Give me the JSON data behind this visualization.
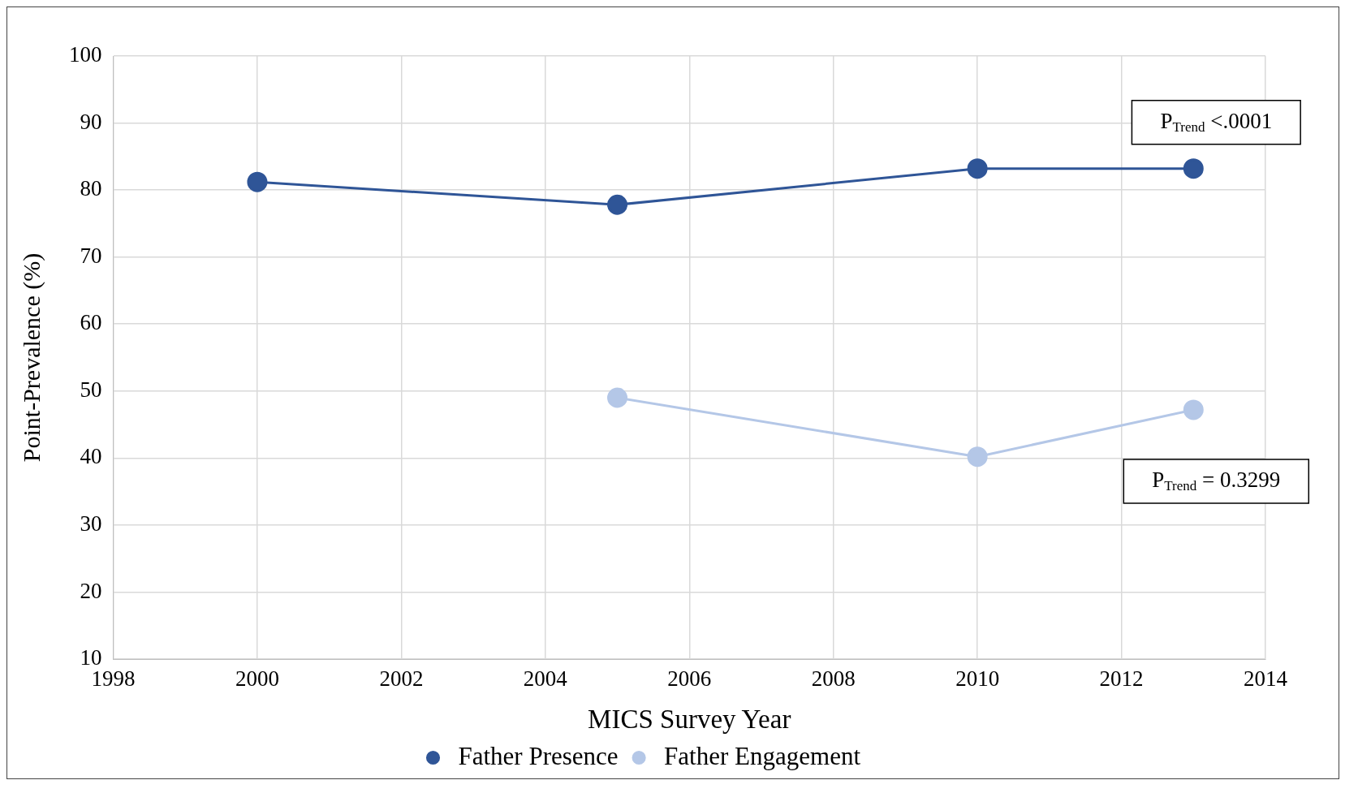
{
  "chart_data": {
    "type": "line",
    "xlabel": "MICS Survey Year",
    "ylabel": "Point-Prevalence (%)",
    "series": [
      {
        "name": "Father Presence",
        "color": "#2f5597",
        "x": [
          2000,
          2005,
          2010,
          2013
        ],
        "values": [
          81.2,
          77.8,
          83.2,
          83.2
        ]
      },
      {
        "name": "Father Engagement",
        "color": "#b4c7e7",
        "x": [
          2005,
          2010,
          2013
        ],
        "values": [
          49.0,
          40.2,
          47.2
        ]
      }
    ],
    "xlim": [
      1998,
      2014
    ],
    "xticks": [
      1998,
      2000,
      2002,
      2004,
      2006,
      2008,
      2010,
      2012,
      2014
    ],
    "ylim": [
      10,
      100
    ],
    "yticks": [
      10,
      20,
      30,
      40,
      50,
      60,
      70,
      80,
      90,
      100
    ],
    "annotations": [
      "P$_{Trend}$ <.0001",
      "P$_{Trend}$ = 0.3299"
    ],
    "grid": true,
    "legend": "bottom",
    "marker": "circle",
    "line_style": "solid"
  }
}
